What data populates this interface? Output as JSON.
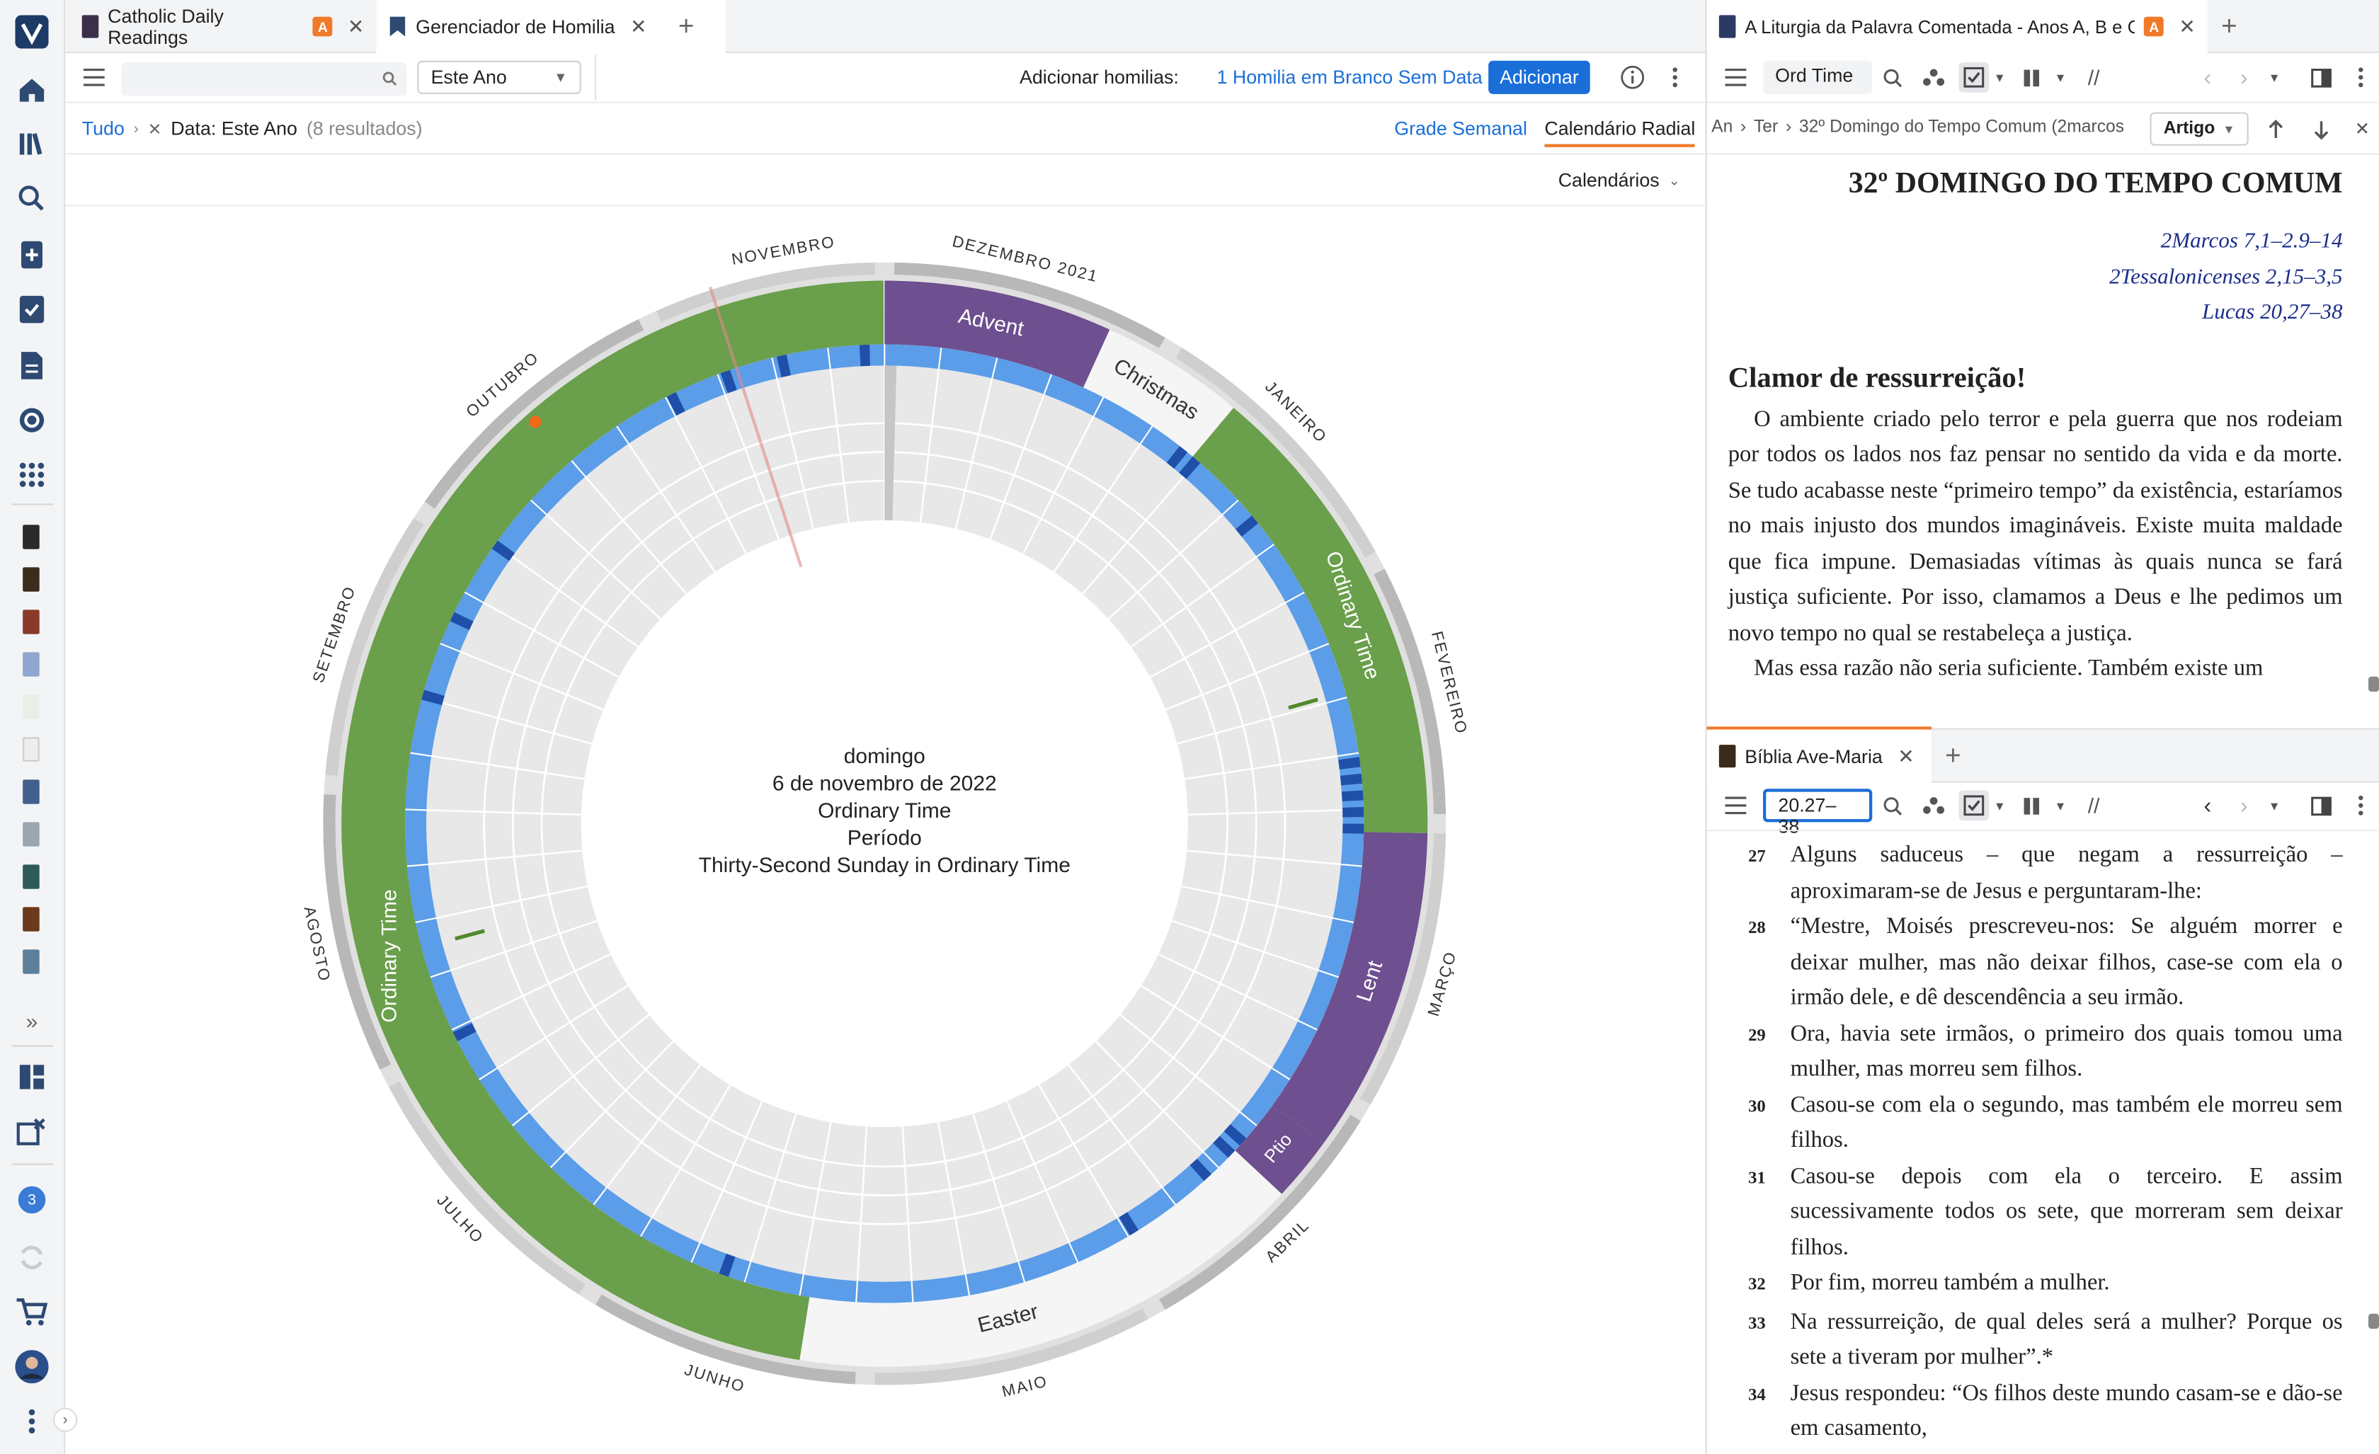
{
  "tabs_left": [
    {
      "label": "Catholic Daily Readings",
      "badge": "A"
    },
    {
      "label": "Gerenciador de Homilia"
    }
  ],
  "tabs_right_top": [
    {
      "label": "A Liturgia da Palavra Comentada - Anos A, B e C",
      "badge": "A"
    }
  ],
  "tabs_right_bottom": [
    {
      "label": "Bíblia Ave-Maria"
    }
  ],
  "left_toolbar": {
    "search_placeholder": "",
    "date_filter": "Este Ano",
    "add_label": "Adicionar homilias:",
    "blank_link": "1 Homilia em Branco Sem Data",
    "add_button": "Adicionar"
  },
  "breadcrumb": {
    "root": "Tudo",
    "filter": "Data: Este Ano",
    "count": "(8 resultados)",
    "view_weekly": "Grade Semanal",
    "view_radial": "Calendário Radial"
  },
  "calendars_button": "Calendários",
  "radial": {
    "center": [
      "domingo",
      "6 de novembro de 2022",
      "Ordinary Time",
      "Período",
      "Thirty-Second Sunday in Ordinary Time"
    ],
    "months": [
      "DEZEMBRO 2021",
      "JANEIRO",
      "FEVEREIRO",
      "MARÇO",
      "ABRIL",
      "MAIO",
      "JUNHO",
      "JULHO",
      "AGOSTO",
      "SETEMBRO",
      "OUTUBRO",
      "NOVEMBRO"
    ],
    "seasons": [
      {
        "label": "Advent",
        "color": "#6e4f8f"
      },
      {
        "label": "Christmas",
        "color": "#f5f5f5"
      },
      {
        "label": "Ordinary Time",
        "color": "#6a9f4b"
      },
      {
        "label": "Lent",
        "color": "#6e4f8f"
      },
      {
        "label": "Ptio",
        "color": "#6e4f8f"
      },
      {
        "label": "Easter",
        "color": "#f5f5f5"
      },
      {
        "label": "Ordinary Time",
        "color": "#6a9f4b"
      }
    ]
  },
  "right_top": {
    "search_value": "Ord Time",
    "breadcrumb": [
      "An",
      "Ter",
      "32º Domingo do Tempo Comum (2marcos"
    ],
    "type_select": "Artigo",
    "title": "32º DOMINGO DO TEMPO COMUM",
    "refs": [
      "2Marcos 7,1–2.9–14",
      "2Tessalonicenses 2,15–3,5",
      "Lucas 20,27–38"
    ],
    "heading": "Clamor de ressurreição!",
    "paragraphs": [
      "O ambiente criado pelo terror e pela guerra que nos rodeiam por todos os lados nos faz pensar no sentido da vida e da morte. Se tudo acabasse neste “primeiro tempo” da existência, estaríamos no mais injusto dos mundos imagináveis. Existe muita maldade que fica impune. Demasiadas vítimas às quais nunca se fará justiça suficiente. Por isso, clamamos a Deus e lhe pedimos um novo tempo no qual se restabeleça a justiça.",
      "Mas essa razão não seria suficiente. Também existe um"
    ]
  },
  "right_bottom": {
    "ref_value": "20.27–38",
    "verses": [
      {
        "n": "27",
        "t": "Alguns saduceus – que negam a ressurreição – aproximaram-se de Jesus e perguntaram-lhe:"
      },
      {
        "n": "28",
        "t": "“Mestre, Moisés prescreveu-nos: Se alguém morrer e deixar mulher, mas não deixar filhos, case-se com ela o irmão dele, e dê descendência a seu irmão."
      },
      {
        "n": "29",
        "t": "Ora, havia sete irmãos, o primeiro dos quais tomou uma mulher, mas morreu sem filhos."
      },
      {
        "n": "30",
        "t": "Casou-se com ela o segundo, mas também ele morreu sem filhos."
      },
      {
        "n": "31",
        "t": "Casou-se depois com ela o terceiro. E assim sucessivamente todos os sete, que morreram sem deixar filhos."
      },
      {
        "n": "32",
        "t": "Por fim, morreu também a mulher."
      },
      {
        "n": "33",
        "t": "Na ressurreição, de qual deles será a mulher? Porque os sete a tiveram por mulher”.*"
      },
      {
        "n": "34",
        "t": "Jesus respondeu: “Os filhos deste mundo casam-se e dão-se em casamento,"
      }
    ]
  },
  "rail_badge": "3",
  "colors": {
    "accent": "#1a6ed8",
    "green": "#6a9f4b",
    "purple": "#6e4f8f",
    "blue_ring": "#5b9de8"
  }
}
